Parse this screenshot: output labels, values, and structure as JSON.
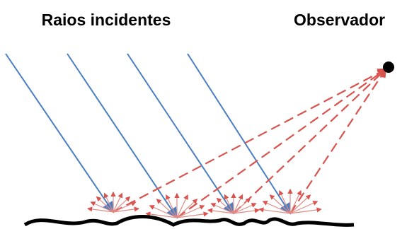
{
  "labels": {
    "incident_rays": "Raios incidentes",
    "observer": "Observador"
  }
}
